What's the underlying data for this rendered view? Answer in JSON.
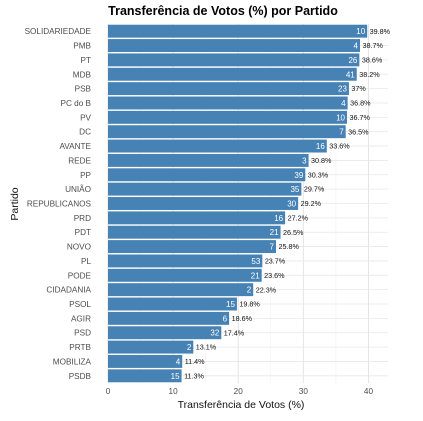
{
  "chart_data": {
    "type": "bar",
    "orientation": "horizontal",
    "title": "Transferência de Votos (%) por Partido",
    "xlabel": "Transferência de Votos (%)",
    "ylabel": "Partido",
    "xlim": [
      0,
      43
    ],
    "xticks": [
      0,
      10,
      20,
      30,
      40
    ],
    "grid": true,
    "bar_color": "#4682b4",
    "categories": [
      "SOLIDARIEDADE",
      "PMB",
      "PT",
      "MDB",
      "PSB",
      "PC do B",
      "PV",
      "DC",
      "AVANTE",
      "REDE",
      "PP",
      "UNIÃO",
      "REPUBLICANOS",
      "PRD",
      "PDT",
      "NOVO",
      "PL",
      "PODE",
      "CIDADANIA",
      "PSOL",
      "AGIR",
      "PSD",
      "PRTB",
      "MOBILIZA",
      "PSDB"
    ],
    "values": [
      39.8,
      38.7,
      38.6,
      38.2,
      37.0,
      36.8,
      36.7,
      36.5,
      33.6,
      30.8,
      30.3,
      29.7,
      29.2,
      27.2,
      26.5,
      25.8,
      23.7,
      23.6,
      22.3,
      19.8,
      18.6,
      17.4,
      13.1,
      11.4,
      11.3
    ],
    "value_labels": [
      "39.8%",
      "38.7%",
      "38.6%",
      "38.2%",
      "37%",
      "36.8%",
      "36.7%",
      "36.5%",
      "33.6%",
      "30.8%",
      "30.3%",
      "29.7%",
      "29.2%",
      "27.2%",
      "26.5%",
      "25.8%",
      "23.7%",
      "23.6%",
      "22.3%",
      "19.8%",
      "18.6%",
      "17.4%",
      "13.1%",
      "11.4%",
      "11.3%"
    ],
    "bar_labels": [
      "10",
      "4",
      "26",
      "41",
      "23",
      "4",
      "10",
      "7",
      "16",
      "3",
      "39",
      "35",
      "30",
      "16",
      "21",
      "7",
      "53",
      "21",
      "2",
      "15",
      "6",
      "32",
      "2",
      "4",
      "15"
    ]
  }
}
